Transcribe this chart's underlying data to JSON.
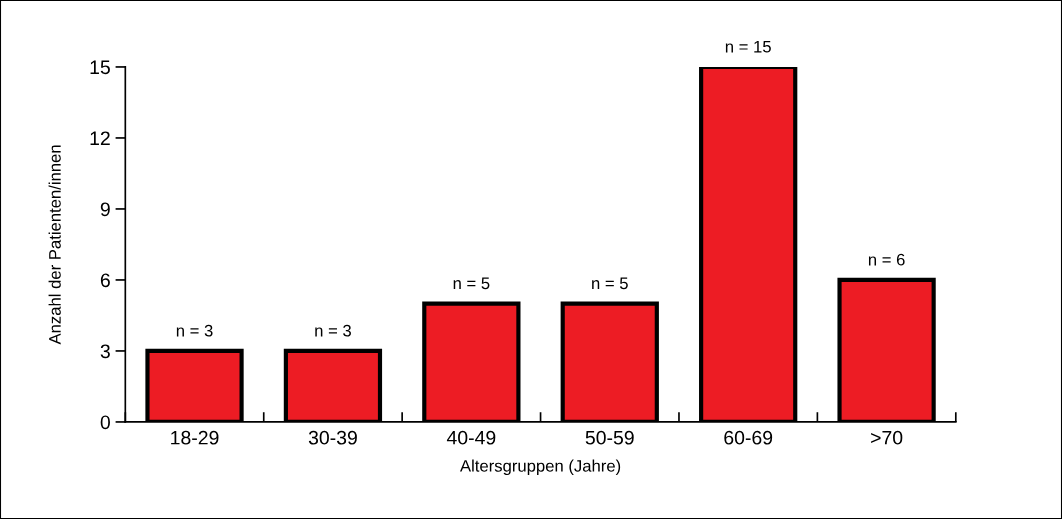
{
  "chart_data": {
    "type": "bar",
    "categories": [
      "18-29",
      "30-39",
      "40-49",
      "50-59",
      "60-69",
      ">70"
    ],
    "values": [
      3,
      3,
      5,
      5,
      15,
      6
    ],
    "value_labels": [
      "n = 3",
      "n = 3",
      "n = 5",
      "n = 5",
      "n = 15",
      "n = 6"
    ],
    "color": "#ed1c24",
    "xlabel": "Altersgruppen (Jahre)",
    "ylabel": "Anzahl der Patienten/innen",
    "ylim": [
      0,
      15
    ],
    "yticks": [
      0,
      3,
      6,
      9,
      12,
      15
    ],
    "grid": false
  }
}
